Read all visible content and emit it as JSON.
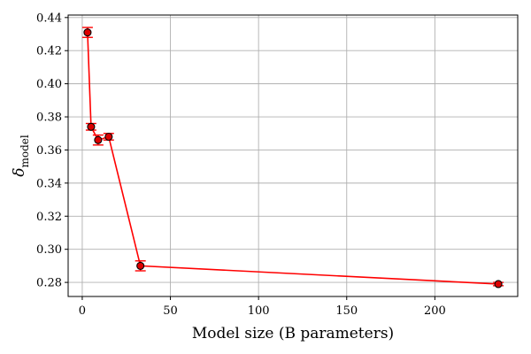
{
  "chart_data": {
    "type": "line",
    "title": "",
    "xlabel": "Model size (B parameters)",
    "ylabel_main": "δ",
    "ylabel_sub": "model",
    "xlim": [
      -8,
      247
    ],
    "ylim": [
      0.2715,
      0.4415
    ],
    "x_ticks": [
      0,
      50,
      100,
      150,
      200
    ],
    "y_ticks": [
      0.28,
      0.3,
      0.32,
      0.34,
      0.36,
      0.38,
      0.4,
      0.42,
      0.44
    ],
    "grid": true,
    "line_color": "#ff0000",
    "marker_face": "#dd0000",
    "marker_edge": "#000000",
    "points": [
      {
        "x": 3,
        "y": 0.431,
        "err": 0.003
      },
      {
        "x": 5,
        "y": 0.374,
        "err": 0.002
      },
      {
        "x": 9,
        "y": 0.366,
        "err": 0.003
      },
      {
        "x": 15,
        "y": 0.368,
        "err": 0.002
      },
      {
        "x": 33,
        "y": 0.29,
        "err": 0.003
      },
      {
        "x": 236,
        "y": 0.279,
        "err": 0.001
      }
    ]
  }
}
